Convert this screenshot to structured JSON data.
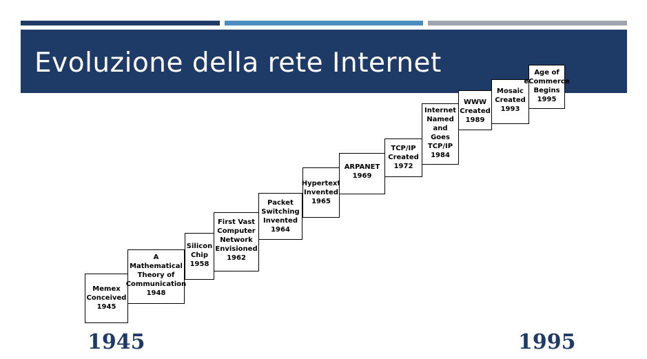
{
  "title": "Evoluzione della rete Internet",
  "colors": {
    "title_band": "#1e3a66",
    "bar_1": "#1e3a66",
    "bar_2": "#4a8fbf",
    "bar_3": "#9ea5ae",
    "year_text": "#1e3a66"
  },
  "steps": [
    {
      "label": "Memex\nConceived",
      "year": "1945"
    },
    {
      "label": "A\nMathematical\nTheory of\nCommunication",
      "year": "1948"
    },
    {
      "label": "Silicon\nChip",
      "year": "1958"
    },
    {
      "label": "First Vast\nComputer\nNetwork\nEnvisioned",
      "year": "1962"
    },
    {
      "label": "Packet\nSwitching\nInvented",
      "year": "1964"
    },
    {
      "label": "Hypertext\nInvented",
      "year": "1965"
    },
    {
      "label": "ARPANET",
      "year": "1969"
    },
    {
      "label": "TCP/IP\nCreated",
      "year": "1972"
    },
    {
      "label": "Internet\nNamed\nand\nGoes\nTCP/IP",
      "year": "1984"
    },
    {
      "label": "WWW\nCreated",
      "year": "1989"
    },
    {
      "label": "Mosaic\nCreated",
      "year": "1993"
    },
    {
      "label": "Age of\neCommerce\nBegins",
      "year": "1995"
    }
  ],
  "range": {
    "start": "1945",
    "end": "1995"
  }
}
